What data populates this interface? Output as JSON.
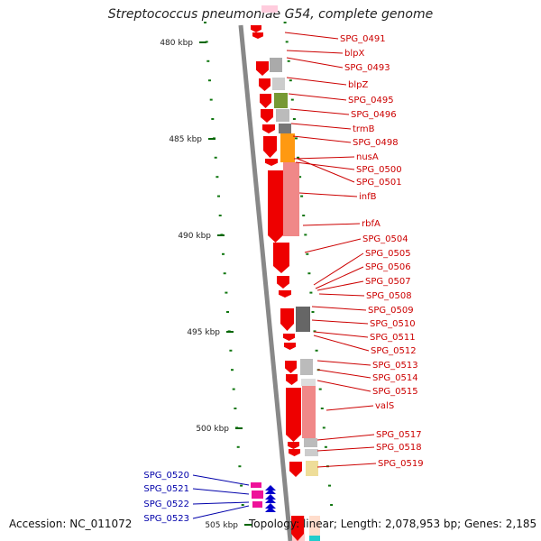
{
  "title": "Streptococcus pneumoniae G54, complete genome",
  "footer": {
    "accession": "Accession: NC_011072",
    "topology": "Topology: linear; Length: 2,078,953 bp; Genes: 2,185"
  },
  "ticks": [
    {
      "label": "480 kbp"
    },
    {
      "label": "485 kbp"
    },
    {
      "label": "490 kbp"
    },
    {
      "label": "495 kbp"
    },
    {
      "label": "500 kbp"
    },
    {
      "label": "505 kbp"
    }
  ],
  "genes_right": [
    "SPG_0491",
    "blpX",
    "SPG_0493",
    "blpZ",
    "SPG_0495",
    "SPG_0496",
    "trmB",
    "SPG_0498",
    "nusA",
    "SPG_0500",
    "SPG_0501",
    "infB",
    "rbfA",
    "SPG_0504",
    "SPG_0505",
    "SPG_0506",
    "SPG_0507",
    "SPG_0508",
    "SPG_0509",
    "SPG_0510",
    "SPG_0511",
    "SPG_0512",
    "SPG_0513",
    "SPG_0514",
    "SPG_0515",
    "valS",
    "SPG_0517",
    "SPG_0518",
    "SPG_0519"
  ],
  "genes_left": [
    "SPG_0520",
    "SPG_0521",
    "SPG_0522",
    "SPG_0523"
  ],
  "colors": {
    "forward_gene": "#ee0000",
    "reverse_gene": "#0000cc",
    "pink_gene": "#ee1199",
    "right_label": "#cc0000",
    "left_label": "#0000aa",
    "tick": "#006600",
    "axis": "#888888"
  }
}
